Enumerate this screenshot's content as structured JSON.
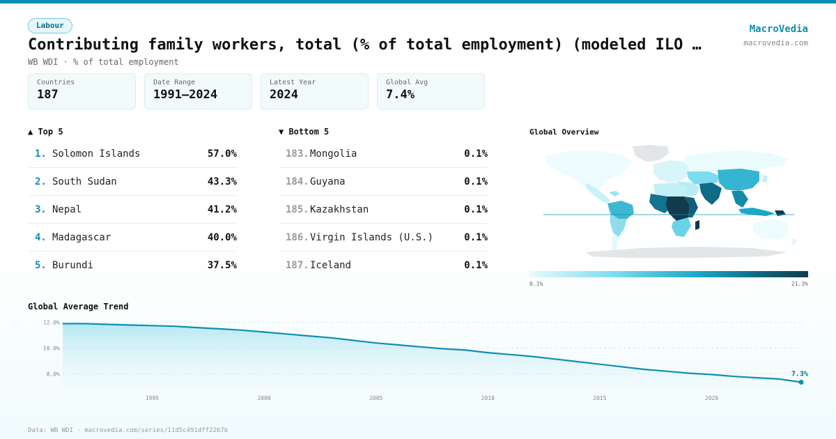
{
  "badge": "Labour",
  "title": "Contributing family workers, total (% of total employment) (modeled ILO …",
  "subtitle": "WB WDI · % of total employment",
  "brand": {
    "name": "MacroVedia",
    "url": "macrovedia.com"
  },
  "stats": [
    {
      "label": "Countries",
      "value": "187"
    },
    {
      "label": "Date Range",
      "value": "1991–2024"
    },
    {
      "label": "Latest Year",
      "value": "2024"
    },
    {
      "label": "Global Avg",
      "value": "7.4%"
    }
  ],
  "top5": {
    "heading": "▲ Top 5",
    "items": [
      {
        "rank": "1.",
        "name": "Solomon Islands",
        "value": "57.0%"
      },
      {
        "rank": "2.",
        "name": "South Sudan",
        "value": "43.3%"
      },
      {
        "rank": "3.",
        "name": "Nepal",
        "value": "41.2%"
      },
      {
        "rank": "4.",
        "name": "Madagascar",
        "value": "40.0%"
      },
      {
        "rank": "5.",
        "name": "Burundi",
        "value": "37.5%"
      }
    ]
  },
  "bottom5": {
    "heading": "▼ Bottom 5",
    "items": [
      {
        "rank": "183.",
        "name": "Mongolia",
        "value": "0.1%"
      },
      {
        "rank": "184.",
        "name": "Guyana",
        "value": "0.1%"
      },
      {
        "rank": "185.",
        "name": "Kazakhstan",
        "value": "0.1%"
      },
      {
        "rank": "186.",
        "name": "Virgin Islands (U.S.)",
        "value": "0.1%"
      },
      {
        "rank": "187.",
        "name": "Iceland",
        "value": "0.1%"
      }
    ]
  },
  "map": {
    "heading": "Global Overview",
    "legend_min": "0.1%",
    "legend_max": "21.3%",
    "colors": {
      "low": "#e8fbfe",
      "mid": "#1aa9c8",
      "high": "#123c4d",
      "no_data": "#e3e6e8"
    }
  },
  "trend_heading": "Global Average Trend",
  "chart_data": {
    "type": "area",
    "title": "Global Average Trend",
    "x": [
      1991,
      1992,
      1993,
      1994,
      1995,
      1996,
      1997,
      1998,
      1999,
      2000,
      2001,
      2002,
      2003,
      2004,
      2005,
      2006,
      2007,
      2008,
      2009,
      2010,
      2011,
      2012,
      2013,
      2014,
      2015,
      2016,
      2017,
      2018,
      2019,
      2020,
      2021,
      2022,
      2023,
      2024
    ],
    "values": [
      11.9,
      11.9,
      11.85,
      11.8,
      11.75,
      11.7,
      11.6,
      11.5,
      11.4,
      11.25,
      11.1,
      10.95,
      10.8,
      10.6,
      10.4,
      10.25,
      10.1,
      9.95,
      9.85,
      9.65,
      9.5,
      9.35,
      9.15,
      8.95,
      8.75,
      8.55,
      8.35,
      8.2,
      8.05,
      7.95,
      7.8,
      7.7,
      7.6,
      7.35
    ],
    "x_ticks": [
      1995,
      2000,
      2005,
      2010,
      2015,
      2020
    ],
    "y_ticks": [
      "8.0%",
      "10.0%",
      "12.0%"
    ],
    "y_tick_values": [
      8,
      10,
      12
    ],
    "ylim": [
      7.0,
      12.2
    ],
    "xlim": [
      1991,
      2024
    ],
    "last_label": "7.3%",
    "line_color": "#0e8fb0",
    "grid": true
  },
  "footer": "Data: WB WDI · macrovedia.com/series/11d5c491dff2267b"
}
